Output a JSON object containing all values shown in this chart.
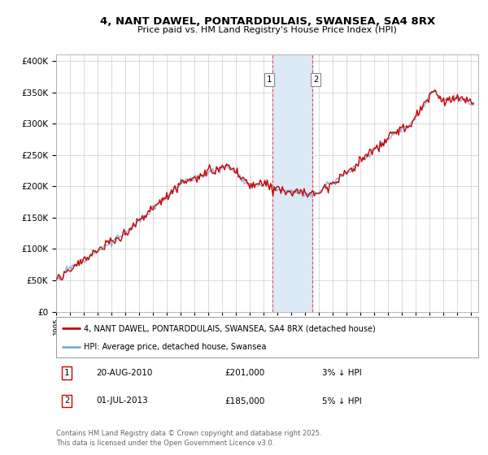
{
  "title": "4, NANT DAWEL, PONTARDDULAIS, SWANSEA, SA4 8RX",
  "subtitle": "Price paid vs. HM Land Registry's House Price Index (HPI)",
  "legend_line1": "4, NANT DAWEL, PONTARDDULAIS, SWANSEA, SA4 8RX (detached house)",
  "legend_line2": "HPI: Average price, detached house, Swansea",
  "sale1_date": "20-AUG-2010",
  "sale1_price": "£201,000",
  "sale1_hpi": "3% ↓ HPI",
  "sale2_date": "01-JUL-2013",
  "sale2_price": "£185,000",
  "sale2_hpi": "5% ↓ HPI",
  "footer": "Contains HM Land Registry data © Crown copyright and database right 2025.\nThis data is licensed under the Open Government Licence v3.0.",
  "sale1_x": 2010.64,
  "sale2_x": 2013.5,
  "sale1_y": 201000,
  "sale2_y": 185000,
  "highlight_color": "#dce9f7",
  "vline_color": "#e05050",
  "red_line_color": "#cc0000",
  "blue_line_color": "#7bafd4",
  "background_color": "#ffffff",
  "grid_color": "#cccccc",
  "ylim": [
    0,
    410000
  ],
  "xlim_start": 1995,
  "xlim_end": 2025.5
}
